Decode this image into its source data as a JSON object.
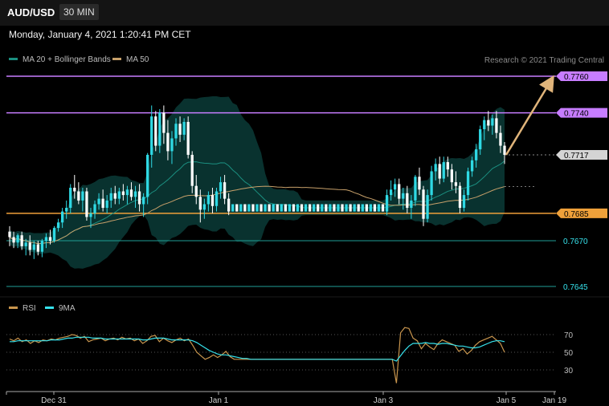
{
  "header": {
    "symbol": "AUD/USD",
    "timeframe": "30 MIN",
    "datetime": "Monday, January 4, 2021 1:20:41 PM CET"
  },
  "legend": {
    "ma20_label": "MA 20 + Bollinger Bands",
    "ma50_label": "MA 50",
    "rsi_label": "RSI",
    "ma9_label": "9MA"
  },
  "credit": "Research © 2021 Trading Central",
  "colors": {
    "background": "#000000",
    "purple_line": "#c77dff",
    "orange_line": "#f0a13a",
    "teal_line": "#1f9e96",
    "cyan": "#36e2ec",
    "arrow": "#e0b47a",
    "ma50": "#c7a06a",
    "ma20": "#1b8f80",
    "band_fill": "#0b3b37",
    "candle_bull": "#2fd9e4",
    "candle_bear": "#ffffff"
  },
  "chart_data": [
    {
      "type": "candlestick",
      "title": "",
      "symbol": "AUD/USD",
      "interval": "30 MIN",
      "x_ticks": [
        "Dec 31",
        "Jan 1",
        "Jan 3",
        "Jan 5",
        "Jan 19"
      ],
      "ylim": [
        0.7638,
        0.7766
      ],
      "horizontal_levels": [
        {
          "value": 0.776,
          "label": "0.7760",
          "style": "target",
          "color": "#c77dff"
        },
        {
          "value": 0.774,
          "label": "0.7740",
          "style": "resistance",
          "color": "#c77dff"
        },
        {
          "value": 0.7717,
          "label": "0.7717",
          "style": "last",
          "color": "#cfcfcf"
        },
        {
          "value": 0.7685,
          "label": "0.7685",
          "style": "pivot",
          "color": "#f0a13a"
        },
        {
          "value": 0.767,
          "label": "0.7670",
          "style": "support",
          "color": "#1f9e96"
        },
        {
          "value": 0.7645,
          "label": "0.7645",
          "style": "support",
          "color": "#1f9e96"
        }
      ],
      "projection": {
        "from": 0.7717,
        "to": 0.776,
        "direction": "up"
      },
      "candles": [
        [
          0.7675,
          0.7678,
          0.7667,
          0.7672
        ],
        [
          0.7672,
          0.7675,
          0.7666,
          0.7669
        ],
        [
          0.7669,
          0.7674,
          0.7666,
          0.7673
        ],
        [
          0.7673,
          0.7675,
          0.7665,
          0.7667
        ],
        [
          0.7667,
          0.7671,
          0.7662,
          0.7669
        ],
        [
          0.7669,
          0.7673,
          0.7662,
          0.7665
        ],
        [
          0.7665,
          0.767,
          0.766,
          0.7668
        ],
        [
          0.7668,
          0.767,
          0.7662,
          0.7664
        ],
        [
          0.7664,
          0.7671,
          0.7661,
          0.767
        ],
        [
          0.767,
          0.7674,
          0.7666,
          0.7672
        ],
        [
          0.7672,
          0.7676,
          0.7668,
          0.767
        ],
        [
          0.767,
          0.7678,
          0.7669,
          0.7677
        ],
        [
          0.7677,
          0.7682,
          0.7675,
          0.768
        ],
        [
          0.768,
          0.7688,
          0.7677,
          0.7686
        ],
        [
          0.7686,
          0.7692,
          0.7682,
          0.7688
        ],
        [
          0.7688,
          0.7701,
          0.7685,
          0.7699
        ],
        [
          0.7699,
          0.7706,
          0.7693,
          0.7697
        ],
        [
          0.7697,
          0.7702,
          0.769,
          0.7692
        ],
        [
          0.7692,
          0.7699,
          0.7686,
          0.7697
        ],
        [
          0.7697,
          0.7699,
          0.7681,
          0.7683
        ],
        [
          0.7683,
          0.7688,
          0.7677,
          0.7685
        ],
        [
          0.7685,
          0.7692,
          0.7682,
          0.769
        ],
        [
          0.769,
          0.7696,
          0.7687,
          0.7693
        ],
        [
          0.7693,
          0.7698,
          0.7686,
          0.7688
        ],
        [
          0.7688,
          0.7695,
          0.7685,
          0.7692
        ],
        [
          0.7692,
          0.7699,
          0.7688,
          0.7696
        ],
        [
          0.7696,
          0.77,
          0.769,
          0.7693
        ],
        [
          0.7693,
          0.7699,
          0.769,
          0.7697
        ],
        [
          0.7697,
          0.7701,
          0.7692,
          0.7695
        ],
        [
          0.7695,
          0.77,
          0.769,
          0.7698
        ],
        [
          0.7698,
          0.7702,
          0.7692,
          0.7694
        ],
        [
          0.7694,
          0.77,
          0.7688,
          0.7697
        ],
        [
          0.7697,
          0.7701,
          0.7686,
          0.769
        ],
        [
          0.769,
          0.7696,
          0.7683,
          0.7694
        ],
        [
          0.7694,
          0.7718,
          0.769,
          0.7717
        ],
        [
          0.7717,
          0.7744,
          0.771,
          0.7738
        ],
        [
          0.7738,
          0.7741,
          0.7719,
          0.7722
        ],
        [
          0.7722,
          0.7742,
          0.7718,
          0.774
        ],
        [
          0.774,
          0.7744,
          0.7723,
          0.7729
        ],
        [
          0.7729,
          0.7736,
          0.7714,
          0.7719
        ],
        [
          0.7719,
          0.773,
          0.7712,
          0.7726
        ],
        [
          0.7726,
          0.7737,
          0.7722,
          0.7734
        ],
        [
          0.7734,
          0.7738,
          0.7724,
          0.7728
        ],
        [
          0.7728,
          0.7737,
          0.7725,
          0.7735
        ],
        [
          0.7735,
          0.7738,
          0.7715,
          0.7717
        ],
        [
          0.7717,
          0.7719,
          0.7696,
          0.77
        ],
        [
          0.77,
          0.7706,
          0.769,
          0.7694
        ],
        [
          0.7694,
          0.7698,
          0.768,
          0.7687
        ],
        [
          0.7687,
          0.7693,
          0.7682,
          0.769
        ],
        [
          0.769,
          0.7697,
          0.7686,
          0.7695
        ],
        [
          0.7695,
          0.7699,
          0.7685,
          0.7689
        ],
        [
          0.7689,
          0.7699,
          0.7686,
          0.7697
        ],
        [
          0.7697,
          0.7705,
          0.7693,
          0.7702
        ],
        [
          0.7702,
          0.7706,
          0.769,
          0.7693
        ],
        [
          0.7693,
          0.7696,
          0.7684,
          0.7686
        ],
        [
          0.7686,
          0.769,
          0.7686,
          0.769
        ],
        [
          0.769,
          0.769,
          0.7686,
          0.7686
        ],
        [
          0.7686,
          0.769,
          0.7686,
          0.769
        ],
        [
          0.769,
          0.769,
          0.7686,
          0.7686
        ],
        [
          0.7686,
          0.769,
          0.7686,
          0.769
        ],
        [
          0.769,
          0.769,
          0.7686,
          0.7686
        ],
        [
          0.7686,
          0.769,
          0.7686,
          0.769
        ],
        [
          0.769,
          0.769,
          0.7686,
          0.7686
        ],
        [
          0.7686,
          0.769,
          0.7686,
          0.769
        ],
        [
          0.769,
          0.769,
          0.7686,
          0.7686
        ],
        [
          0.7686,
          0.769,
          0.7686,
          0.769
        ],
        [
          0.769,
          0.769,
          0.7686,
          0.7686
        ],
        [
          0.7686,
          0.769,
          0.7686,
          0.769
        ],
        [
          0.769,
          0.769,
          0.7686,
          0.7686
        ],
        [
          0.7686,
          0.769,
          0.7686,
          0.769
        ],
        [
          0.769,
          0.769,
          0.7686,
          0.7686
        ],
        [
          0.7686,
          0.769,
          0.7686,
          0.769
        ],
        [
          0.769,
          0.769,
          0.7686,
          0.7686
        ],
        [
          0.7686,
          0.769,
          0.7686,
          0.769
        ],
        [
          0.769,
          0.769,
          0.7686,
          0.7686
        ],
        [
          0.7686,
          0.769,
          0.7686,
          0.769
        ],
        [
          0.769,
          0.769,
          0.7686,
          0.7686
        ],
        [
          0.7686,
          0.769,
          0.7686,
          0.769
        ],
        [
          0.769,
          0.769,
          0.7686,
          0.7686
        ],
        [
          0.7686,
          0.769,
          0.7686,
          0.769
        ],
        [
          0.769,
          0.769,
          0.7686,
          0.7686
        ],
        [
          0.7686,
          0.769,
          0.7686,
          0.769
        ],
        [
          0.769,
          0.769,
          0.7686,
          0.7686
        ],
        [
          0.7686,
          0.769,
          0.7686,
          0.769
        ],
        [
          0.769,
          0.769,
          0.7686,
          0.7686
        ],
        [
          0.7686,
          0.769,
          0.7686,
          0.769
        ],
        [
          0.769,
          0.769,
          0.7686,
          0.7686
        ],
        [
          0.7686,
          0.769,
          0.7686,
          0.769
        ],
        [
          0.769,
          0.769,
          0.7686,
          0.7686
        ],
        [
          0.7686,
          0.769,
          0.7686,
          0.769
        ],
        [
          0.769,
          0.769,
          0.7686,
          0.7686
        ],
        [
          0.7686,
          0.769,
          0.7686,
          0.769
        ],
        [
          0.769,
          0.769,
          0.7686,
          0.7686
        ],
        [
          0.7686,
          0.7698,
          0.7684,
          0.7695
        ],
        [
          0.7695,
          0.7703,
          0.7692,
          0.7698
        ],
        [
          0.7698,
          0.7704,
          0.7694,
          0.7701
        ],
        [
          0.7701,
          0.7704,
          0.769,
          0.7693
        ],
        [
          0.7693,
          0.7699,
          0.7687,
          0.7696
        ],
        [
          0.7696,
          0.77,
          0.7685,
          0.7688
        ],
        [
          0.7688,
          0.7695,
          0.7682,
          0.7692
        ],
        [
          0.7692,
          0.7706,
          0.7689,
          0.7705
        ],
        [
          0.7705,
          0.771,
          0.7695,
          0.7698
        ],
        [
          0.7698,
          0.77,
          0.7678,
          0.7682
        ],
        [
          0.7682,
          0.7698,
          0.768,
          0.7695
        ],
        [
          0.7695,
          0.7711,
          0.7692,
          0.7708
        ],
        [
          0.7708,
          0.7715,
          0.7703,
          0.7712
        ],
        [
          0.7712,
          0.7716,
          0.7701,
          0.7704
        ],
        [
          0.7704,
          0.7716,
          0.7702,
          0.7713
        ],
        [
          0.7713,
          0.7716,
          0.7705,
          0.7709
        ],
        [
          0.7709,
          0.7712,
          0.7698,
          0.7702
        ],
        [
          0.7702,
          0.7708,
          0.7696,
          0.77
        ],
        [
          0.77,
          0.7702,
          0.7685,
          0.7688
        ],
        [
          0.7688,
          0.7698,
          0.7686,
          0.7695
        ],
        [
          0.7695,
          0.771,
          0.7692,
          0.7708
        ],
        [
          0.7708,
          0.7716,
          0.7705,
          0.7714
        ],
        [
          0.7714,
          0.7723,
          0.771,
          0.772
        ],
        [
          0.772,
          0.7733,
          0.7717,
          0.7731
        ],
        [
          0.7731,
          0.7738,
          0.7725,
          0.7736
        ],
        [
          0.7736,
          0.7741,
          0.773,
          0.7733
        ],
        [
          0.7733,
          0.7739,
          0.7728,
          0.7737
        ],
        [
          0.7737,
          0.7741,
          0.7726,
          0.7729
        ],
        [
          0.7729,
          0.7733,
          0.7718,
          0.7722
        ],
        [
          0.7722,
          0.7724,
          0.7712,
          0.7717
        ]
      ],
      "candle_fields": [
        "open",
        "high",
        "low",
        "close"
      ]
    },
    {
      "type": "line",
      "title": "",
      "ylim": [
        10,
        90
      ],
      "y_ticks": [
        70,
        50,
        30
      ],
      "series": [
        {
          "name": "RSI",
          "color": "#c9964e",
          "values": [
            65,
            63,
            66,
            62,
            64,
            60,
            63,
            61,
            64,
            63,
            65,
            64,
            66,
            67,
            68,
            70,
            69,
            66,
            68,
            62,
            64,
            65,
            66,
            63,
            65,
            66,
            64,
            67,
            65,
            66,
            63,
            65,
            60,
            63,
            68,
            69,
            62,
            66,
            63,
            61,
            64,
            66,
            63,
            65,
            58,
            50,
            46,
            42,
            44,
            47,
            44,
            47,
            51,
            45,
            42,
            42,
            42,
            42,
            42,
            42,
            42,
            42,
            42,
            42,
            42,
            42,
            42,
            42,
            42,
            42,
            42,
            42,
            42,
            42,
            42,
            42,
            42,
            42,
            42,
            42,
            42,
            42,
            42,
            42,
            42,
            42,
            42,
            42,
            42,
            42,
            42,
            42,
            42,
            15,
            72,
            78,
            77,
            66,
            63,
            54,
            60,
            56,
            53,
            60,
            64,
            62,
            60,
            58,
            51,
            54,
            48,
            52,
            58,
            62,
            64,
            66,
            68,
            64,
            60,
            50
          ]
        },
        {
          "name": "9MA",
          "color": "#36e2ec",
          "values": [
            62,
            62,
            63,
            63,
            63,
            63,
            63,
            63,
            63,
            63,
            64,
            64,
            64,
            65,
            66,
            66,
            67,
            67,
            67,
            67,
            66,
            66,
            66,
            65,
            65,
            65,
            65,
            65,
            65,
            65,
            65,
            65,
            64,
            64,
            65,
            66,
            66,
            66,
            65,
            64,
            64,
            64,
            64,
            64,
            63,
            61,
            58,
            55,
            52,
            50,
            48,
            47,
            47,
            46,
            45,
            44,
            43,
            43,
            42,
            42,
            42,
            42,
            42,
            42,
            42,
            42,
            42,
            42,
            42,
            42,
            42,
            42,
            42,
            42,
            42,
            42,
            42,
            42,
            42,
            42,
            42,
            42,
            42,
            42,
            42,
            42,
            42,
            42,
            42,
            42,
            42,
            42,
            42,
            40,
            46,
            52,
            57,
            60,
            60,
            60,
            61,
            60,
            60,
            59,
            60,
            60,
            59,
            58,
            57,
            57,
            56,
            55,
            55,
            56,
            58,
            60,
            62,
            63,
            63,
            62
          ]
        }
      ]
    }
  ]
}
